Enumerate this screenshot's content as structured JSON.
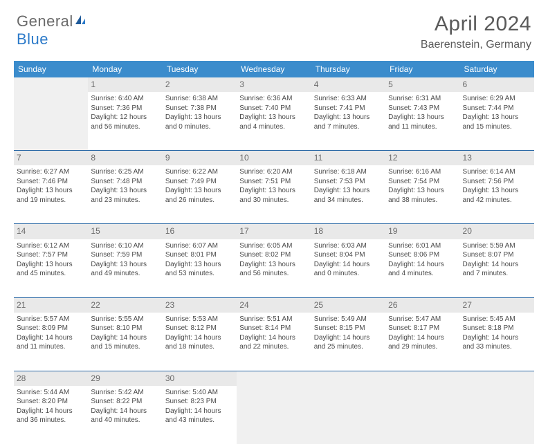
{
  "brand": {
    "general": "General",
    "blue": "Blue"
  },
  "title": {
    "month": "April 2024",
    "location": "Baerenstein, Germany"
  },
  "colors": {
    "header_bg": "#3b8ccc",
    "divider": "#2867a5",
    "brand_gray": "#6a6a6a",
    "brand_blue": "#2c7ac9",
    "text": "#4a4a4a",
    "empty_cell": "#f0f0f0",
    "page_bg": "#ffffff"
  },
  "weekdays": [
    "Sunday",
    "Monday",
    "Tuesday",
    "Wednesday",
    "Thursday",
    "Friday",
    "Saturday"
  ],
  "weeks": [
    [
      null,
      {
        "n": "1",
        "sr": "Sunrise: 6:40 AM",
        "ss": "Sunset: 7:36 PM",
        "dl": "Daylight: 12 hours and 56 minutes."
      },
      {
        "n": "2",
        "sr": "Sunrise: 6:38 AM",
        "ss": "Sunset: 7:38 PM",
        "dl": "Daylight: 13 hours and 0 minutes."
      },
      {
        "n": "3",
        "sr": "Sunrise: 6:36 AM",
        "ss": "Sunset: 7:40 PM",
        "dl": "Daylight: 13 hours and 4 minutes."
      },
      {
        "n": "4",
        "sr": "Sunrise: 6:33 AM",
        "ss": "Sunset: 7:41 PM",
        "dl": "Daylight: 13 hours and 7 minutes."
      },
      {
        "n": "5",
        "sr": "Sunrise: 6:31 AM",
        "ss": "Sunset: 7:43 PM",
        "dl": "Daylight: 13 hours and 11 minutes."
      },
      {
        "n": "6",
        "sr": "Sunrise: 6:29 AM",
        "ss": "Sunset: 7:44 PM",
        "dl": "Daylight: 13 hours and 15 minutes."
      }
    ],
    [
      {
        "n": "7",
        "sr": "Sunrise: 6:27 AM",
        "ss": "Sunset: 7:46 PM",
        "dl": "Daylight: 13 hours and 19 minutes."
      },
      {
        "n": "8",
        "sr": "Sunrise: 6:25 AM",
        "ss": "Sunset: 7:48 PM",
        "dl": "Daylight: 13 hours and 23 minutes."
      },
      {
        "n": "9",
        "sr": "Sunrise: 6:22 AM",
        "ss": "Sunset: 7:49 PM",
        "dl": "Daylight: 13 hours and 26 minutes."
      },
      {
        "n": "10",
        "sr": "Sunrise: 6:20 AM",
        "ss": "Sunset: 7:51 PM",
        "dl": "Daylight: 13 hours and 30 minutes."
      },
      {
        "n": "11",
        "sr": "Sunrise: 6:18 AM",
        "ss": "Sunset: 7:53 PM",
        "dl": "Daylight: 13 hours and 34 minutes."
      },
      {
        "n": "12",
        "sr": "Sunrise: 6:16 AM",
        "ss": "Sunset: 7:54 PM",
        "dl": "Daylight: 13 hours and 38 minutes."
      },
      {
        "n": "13",
        "sr": "Sunrise: 6:14 AM",
        "ss": "Sunset: 7:56 PM",
        "dl": "Daylight: 13 hours and 42 minutes."
      }
    ],
    [
      {
        "n": "14",
        "sr": "Sunrise: 6:12 AM",
        "ss": "Sunset: 7:57 PM",
        "dl": "Daylight: 13 hours and 45 minutes."
      },
      {
        "n": "15",
        "sr": "Sunrise: 6:10 AM",
        "ss": "Sunset: 7:59 PM",
        "dl": "Daylight: 13 hours and 49 minutes."
      },
      {
        "n": "16",
        "sr": "Sunrise: 6:07 AM",
        "ss": "Sunset: 8:01 PM",
        "dl": "Daylight: 13 hours and 53 minutes."
      },
      {
        "n": "17",
        "sr": "Sunrise: 6:05 AM",
        "ss": "Sunset: 8:02 PM",
        "dl": "Daylight: 13 hours and 56 minutes."
      },
      {
        "n": "18",
        "sr": "Sunrise: 6:03 AM",
        "ss": "Sunset: 8:04 PM",
        "dl": "Daylight: 14 hours and 0 minutes."
      },
      {
        "n": "19",
        "sr": "Sunrise: 6:01 AM",
        "ss": "Sunset: 8:06 PM",
        "dl": "Daylight: 14 hours and 4 minutes."
      },
      {
        "n": "20",
        "sr": "Sunrise: 5:59 AM",
        "ss": "Sunset: 8:07 PM",
        "dl": "Daylight: 14 hours and 7 minutes."
      }
    ],
    [
      {
        "n": "21",
        "sr": "Sunrise: 5:57 AM",
        "ss": "Sunset: 8:09 PM",
        "dl": "Daylight: 14 hours and 11 minutes."
      },
      {
        "n": "22",
        "sr": "Sunrise: 5:55 AM",
        "ss": "Sunset: 8:10 PM",
        "dl": "Daylight: 14 hours and 15 minutes."
      },
      {
        "n": "23",
        "sr": "Sunrise: 5:53 AM",
        "ss": "Sunset: 8:12 PM",
        "dl": "Daylight: 14 hours and 18 minutes."
      },
      {
        "n": "24",
        "sr": "Sunrise: 5:51 AM",
        "ss": "Sunset: 8:14 PM",
        "dl": "Daylight: 14 hours and 22 minutes."
      },
      {
        "n": "25",
        "sr": "Sunrise: 5:49 AM",
        "ss": "Sunset: 8:15 PM",
        "dl": "Daylight: 14 hours and 25 minutes."
      },
      {
        "n": "26",
        "sr": "Sunrise: 5:47 AM",
        "ss": "Sunset: 8:17 PM",
        "dl": "Daylight: 14 hours and 29 minutes."
      },
      {
        "n": "27",
        "sr": "Sunrise: 5:45 AM",
        "ss": "Sunset: 8:18 PM",
        "dl": "Daylight: 14 hours and 33 minutes."
      }
    ],
    [
      {
        "n": "28",
        "sr": "Sunrise: 5:44 AM",
        "ss": "Sunset: 8:20 PM",
        "dl": "Daylight: 14 hours and 36 minutes."
      },
      {
        "n": "29",
        "sr": "Sunrise: 5:42 AM",
        "ss": "Sunset: 8:22 PM",
        "dl": "Daylight: 14 hours and 40 minutes."
      },
      {
        "n": "30",
        "sr": "Sunrise: 5:40 AM",
        "ss": "Sunset: 8:23 PM",
        "dl": "Daylight: 14 hours and 43 minutes."
      },
      null,
      null,
      null,
      null
    ]
  ]
}
